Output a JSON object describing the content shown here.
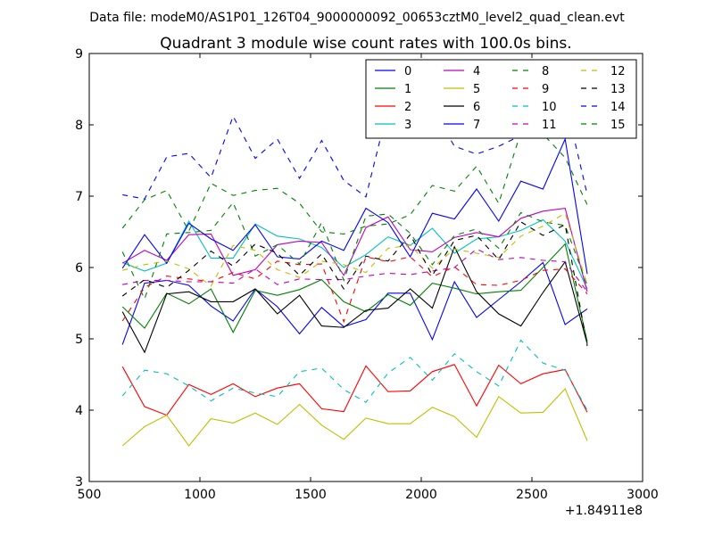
{
  "chart_data": {
    "type": "line",
    "suptitle": "Data file: modeM0/AS1P01_126T04_9000000092_00653cztM0_level2_quad_clean.evt",
    "title": "Quadrant 3 module wise count rates with 100.0s bins.",
    "xlabel": "",
    "ylabel": "",
    "x_offset_label": "+1.84911e8",
    "xlim": [
      500,
      3000
    ],
    "ylim": [
      3,
      9
    ],
    "xticks": [
      "500",
      "1000",
      "1500",
      "2000",
      "2500",
      "3000"
    ],
    "yticks": [
      "3",
      "4",
      "5",
      "6",
      "7",
      "8",
      "9"
    ],
    "legend_position": "top-right",
    "x": [
      650,
      750,
      850,
      950,
      1050,
      1150,
      1250,
      1350,
      1450,
      1550,
      1650,
      1750,
      1850,
      1950,
      2050,
      2150,
      2250,
      2350,
      2450,
      2550,
      2650,
      2750
    ],
    "series": [
      {
        "name": "0",
        "color": "#0000ff",
        "style": "solid",
        "values": [
          4.92,
          5.78,
          5.82,
          5.75,
          5.46,
          5.25,
          5.7,
          5.45,
          5.07,
          5.44,
          5.17,
          5.27,
          5.64,
          5.64,
          4.99,
          5.8,
          5.3,
          5.55,
          5.8,
          6.07,
          5.2,
          5.42
        ]
      },
      {
        "name": "1",
        "color": "#008000",
        "style": "solid",
        "values": [
          5.45,
          5.15,
          5.64,
          5.49,
          5.7,
          5.09,
          5.68,
          5.61,
          5.69,
          5.83,
          5.52,
          5.38,
          5.62,
          5.47,
          5.78,
          5.71,
          5.63,
          5.66,
          5.68,
          6.0,
          6.33,
          4.96
        ]
      },
      {
        "name": "2",
        "color": "#ff0000",
        "style": "solid",
        "values": [
          4.61,
          4.05,
          3.93,
          4.36,
          4.22,
          4.37,
          4.19,
          4.31,
          4.37,
          4.02,
          3.98,
          4.62,
          4.26,
          4.27,
          4.54,
          4.64,
          4.06,
          4.63,
          4.37,
          4.51,
          4.57,
          3.97
        ]
      },
      {
        "name": "3",
        "color": "#00bfbf",
        "style": "solid",
        "values": [
          6.07,
          5.95,
          6.06,
          6.65,
          6.13,
          6.13,
          6.61,
          6.44,
          6.4,
          6.28,
          6.0,
          6.18,
          6.43,
          6.31,
          6.55,
          6.2,
          6.4,
          6.43,
          6.52,
          6.67,
          6.37,
          5.7
        ]
      },
      {
        "name": "4",
        "color": "#bf00bf",
        "style": "solid",
        "values": [
          6.06,
          6.24,
          6.1,
          6.46,
          6.47,
          5.89,
          5.97,
          6.32,
          6.37,
          6.35,
          5.89,
          6.56,
          6.71,
          6.25,
          6.22,
          6.42,
          6.49,
          6.43,
          6.69,
          6.79,
          6.83,
          5.66
        ]
      },
      {
        "name": "5",
        "color": "#bfbf00",
        "style": "solid",
        "values": [
          3.5,
          3.77,
          3.93,
          3.5,
          3.88,
          3.82,
          3.96,
          3.8,
          4.08,
          3.79,
          3.59,
          3.89,
          3.81,
          3.81,
          4.04,
          3.91,
          3.62,
          4.19,
          3.96,
          3.97,
          4.3,
          3.57
        ]
      },
      {
        "name": "6",
        "color": "#000000",
        "style": "solid",
        "values": [
          5.38,
          4.81,
          5.63,
          5.66,
          5.52,
          5.52,
          5.7,
          5.35,
          5.61,
          5.18,
          5.16,
          5.4,
          5.43,
          5.7,
          5.43,
          6.29,
          5.66,
          5.35,
          5.18,
          5.65,
          6.08,
          4.93
        ]
      },
      {
        "name": "7",
        "color": "#0000ff",
        "style": "solid",
        "values": [
          5.99,
          6.46,
          6.06,
          6.62,
          6.4,
          6.24,
          6.6,
          6.15,
          6.12,
          6.37,
          6.24,
          6.83,
          6.63,
          6.15,
          6.76,
          6.68,
          7.1,
          6.65,
          7.21,
          7.1,
          7.8,
          5.91
        ]
      },
      {
        "name": "8",
        "color": "#008000",
        "style": "dashed",
        "values": [
          6.22,
          5.56,
          6.47,
          6.49,
          6.52,
          6.91,
          6.16,
          6.32,
          6.05,
          6.63,
          5.82,
          6.72,
          6.75,
          6.48,
          6.04,
          6.45,
          6.54,
          6.27,
          6.77,
          6.64,
          6.59,
          5.75
        ]
      },
      {
        "name": "9",
        "color": "#ff0000",
        "style": "dashed",
        "values": [
          5.25,
          5.72,
          5.88,
          5.84,
          5.8,
          5.93,
          5.84,
          6.09,
          6.04,
          6.05,
          5.24,
          6.15,
          6.08,
          6.15,
          5.87,
          6.01,
          5.76,
          5.75,
          5.82,
          5.96,
          5.98,
          5.63
        ]
      },
      {
        "name": "10",
        "color": "#00bfbf",
        "style": "dashed",
        "values": [
          4.2,
          4.56,
          4.51,
          4.34,
          4.13,
          4.31,
          4.24,
          4.19,
          4.54,
          4.59,
          4.29,
          4.11,
          4.52,
          4.74,
          4.42,
          4.79,
          4.54,
          4.34,
          4.98,
          4.66,
          4.56,
          4.0
        ]
      },
      {
        "name": "11",
        "color": "#bf00bf",
        "style": "dashed",
        "values": [
          5.76,
          5.82,
          5.82,
          5.8,
          5.8,
          5.78,
          5.98,
          5.76,
          5.84,
          5.83,
          5.83,
          5.88,
          5.92,
          5.9,
          5.95,
          6.0,
          6.26,
          6.11,
          6.14,
          6.1,
          6.08,
          5.66
        ]
      },
      {
        "name": "12",
        "color": "#bfbf00",
        "style": "dashed",
        "values": [
          5.96,
          6.04,
          6.09,
          5.98,
          5.74,
          6.31,
          6.24,
          5.97,
          5.86,
          6.09,
          6.04,
          5.93,
          6.27,
          6.31,
          5.99,
          6.26,
          6.2,
          6.14,
          6.44,
          6.58,
          6.76,
          5.76
        ]
      },
      {
        "name": "13",
        "color": "#000000",
        "style": "dashed",
        "values": [
          5.6,
          5.83,
          5.72,
          5.96,
          6.23,
          6.02,
          6.33,
          6.2,
          5.89,
          6.19,
          5.7,
          6.16,
          6.09,
          6.46,
          5.89,
          6.38,
          6.45,
          6.11,
          6.64,
          6.45,
          6.6,
          4.9
        ]
      },
      {
        "name": "14",
        "color": "#0000ff",
        "style": "dashed",
        "values": [
          7.02,
          6.96,
          7.55,
          7.6,
          7.26,
          8.12,
          7.53,
          7.8,
          7.25,
          7.78,
          7.22,
          6.99,
          8.24,
          7.82,
          8.22,
          7.7,
          7.59,
          7.7,
          7.85,
          8.43,
          8.35,
          7.02
        ]
      },
      {
        "name": "15",
        "color": "#008000",
        "style": "dashed",
        "values": [
          6.55,
          6.95,
          7.08,
          6.51,
          7.18,
          7.01,
          7.08,
          7.11,
          6.9,
          6.5,
          6.47,
          6.58,
          6.61,
          6.74,
          7.15,
          7.07,
          7.42,
          6.9,
          7.9,
          7.87,
          7.54,
          6.88
        ]
      }
    ]
  }
}
